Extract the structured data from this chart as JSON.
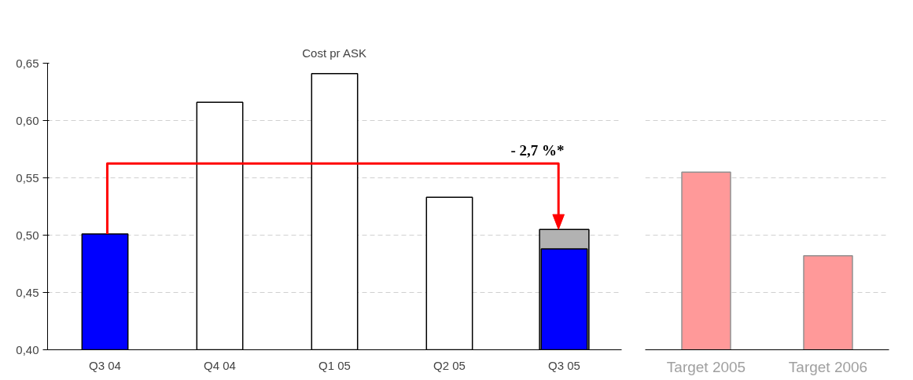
{
  "chart_data": [
    {
      "type": "bar",
      "title": "Cost pr ASK",
      "categories": [
        "Q3 04",
        "Q4 04",
        "Q1 05",
        "Q2 05",
        "Q3 05"
      ],
      "series": [
        {
          "color": "#b2b2b2",
          "values": [
            null,
            null,
            null,
            null,
            0.505
          ]
        },
        {
          "colors": [
            "#0000ff",
            "#ffffff",
            "#ffffff",
            "#ffffff",
            "#0000ff"
          ],
          "values": [
            0.501,
            0.616,
            0.641,
            0.533,
            0.488
          ]
        }
      ],
      "ylim": [
        0.4,
        0.65
      ],
      "yticks": [
        {
          "value": 0.4,
          "label": "0,40"
        },
        {
          "value": 0.45,
          "label": "0,45"
        },
        {
          "value": 0.5,
          "label": "0,50"
        },
        {
          "value": 0.55,
          "label": "0,55"
        },
        {
          "value": 0.6,
          "label": "0,60"
        },
        {
          "value": 0.65,
          "label": "0,65"
        }
      ],
      "grid": "y",
      "annotations": [
        "- 2,7 %*"
      ]
    },
    {
      "type": "bar",
      "categories": [
        "Target 2005",
        "Target 2006"
      ],
      "values": [
        0.555,
        0.482
      ],
      "color": "#ff9999",
      "ylim": [
        0.4,
        0.65
      ],
      "yticks": [
        {
          "value": 0.4,
          "label": null
        },
        {
          "value": 0.45,
          "label": null
        },
        {
          "value": 0.5,
          "label": null
        },
        {
          "value": 0.55,
          "label": null
        },
        {
          "value": 0.6,
          "label": null
        },
        {
          "value": 0.65,
          "label": null
        }
      ],
      "grid": "y",
      "tick_labels": "x"
    }
  ]
}
